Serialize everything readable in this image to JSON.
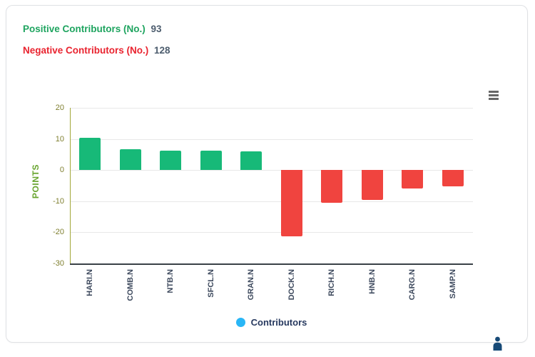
{
  "header": {
    "positive_label": "Positive Contributors (No.)",
    "positive_value": "93",
    "negative_label": "Negative Contributors (No.)",
    "negative_value": "128"
  },
  "chart_data": {
    "type": "bar",
    "title": "",
    "xlabel": "",
    "ylabel": "POINTS",
    "categories": [
      "HARI.N",
      "COMB.N",
      "NTB.N",
      "SFCL.N",
      "GRAN.N",
      "DOCK.N",
      "RICH.N",
      "HNB.N",
      "CARG.N",
      "SAMP.N"
    ],
    "values": [
      10.4,
      6.7,
      6.3,
      6.3,
      6.0,
      -21.3,
      -10.6,
      -9.7,
      -5.9,
      -5.3
    ],
    "ylim": [
      -30,
      20
    ],
    "yticks": [
      20,
      10,
      0,
      -10,
      -20,
      -30
    ],
    "grid": true,
    "legend_position": "bottom",
    "positive_color": "#17b978",
    "negative_color": "#f0443f"
  },
  "legend": {
    "label": "Contributors",
    "dot_color": "#29b6f6"
  },
  "colors": {
    "positive_text": "#1ea45f",
    "negative_text": "#e9232f",
    "value_text": "#4d5d6e",
    "ytick_text": "#7f7f2f",
    "ylabel_text": "#67a42d",
    "xlabel_text": "#3e4a5e",
    "axis_line": "#a2a83a"
  },
  "icons": {
    "export_menu": "hamburger-menu-icon",
    "assistant": "person-icon"
  }
}
